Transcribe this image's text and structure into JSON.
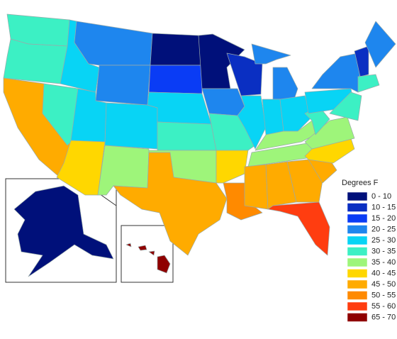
{
  "legend": {
    "title": "Degrees F",
    "items": [
      {
        "label": "0 - 10",
        "color": "#00107a"
      },
      {
        "label": "10 - 15",
        "color": "#0a2fc2"
      },
      {
        "label": "15 - 20",
        "color": "#0a3cf5"
      },
      {
        "label": "20 - 25",
        "color": "#1e86ee"
      },
      {
        "label": "25 - 30",
        "color": "#08d4f5"
      },
      {
        "label": "30 - 35",
        "color": "#3cf0c4"
      },
      {
        "label": "35 - 40",
        "color": "#9ef57a"
      },
      {
        "label": "40 - 45",
        "color": "#ffd700"
      },
      {
        "label": "45 - 50",
        "color": "#ffab00"
      },
      {
        "label": "50 - 55",
        "color": "#ff8a00"
      },
      {
        "label": "55 - 60",
        "color": "#ff3d10"
      },
      {
        "label": "65 - 70",
        "color": "#8f0000"
      }
    ]
  }
}
